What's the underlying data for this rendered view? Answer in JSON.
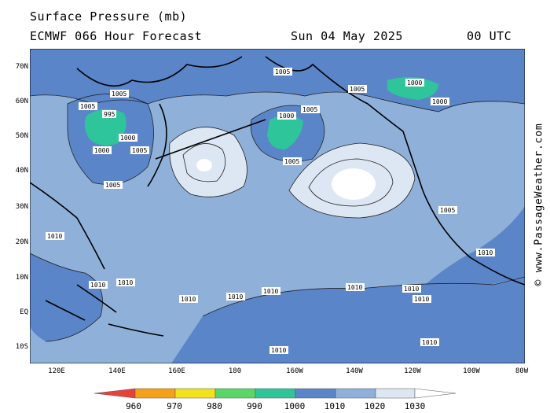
{
  "header": {
    "title": "Surface Pressure (mb)",
    "model": "ECMWF 066 Hour Forecast",
    "date": "Sun 04 May 2025",
    "time": "00 UTC"
  },
  "lat_labels": [
    "70N",
    "60N",
    "50N",
    "40N",
    "30N",
    "20N",
    "10N",
    "EQ",
    "10S"
  ],
  "lon_labels": [
    "120E",
    "140E",
    "160E",
    "180",
    "160W",
    "140W",
    "120W",
    "100W",
    "80W"
  ],
  "isobar_labels": [
    "1005",
    "1005",
    "1005",
    "1005",
    "1005",
    "1005",
    "1005",
    "1005",
    "1005",
    "1000",
    "1000",
    "1000",
    "1000",
    "1000",
    "995",
    "1010",
    "1010",
    "1010",
    "1010",
    "1010",
    "1010",
    "1010",
    "1010",
    "1010",
    "1010",
    "1010",
    "1010"
  ],
  "legend": {
    "values": [
      "960",
      "970",
      "980",
      "990",
      "1000",
      "1010",
      "1020",
      "1030"
    ],
    "colors": [
      "#e8413a",
      "#f5a118",
      "#f2e21c",
      "#5ad667",
      "#2ec59a",
      "#5b85c9",
      "#8fb0d9",
      "#dde6f3"
    ]
  },
  "credit": "© www.PassageWeather.com"
}
